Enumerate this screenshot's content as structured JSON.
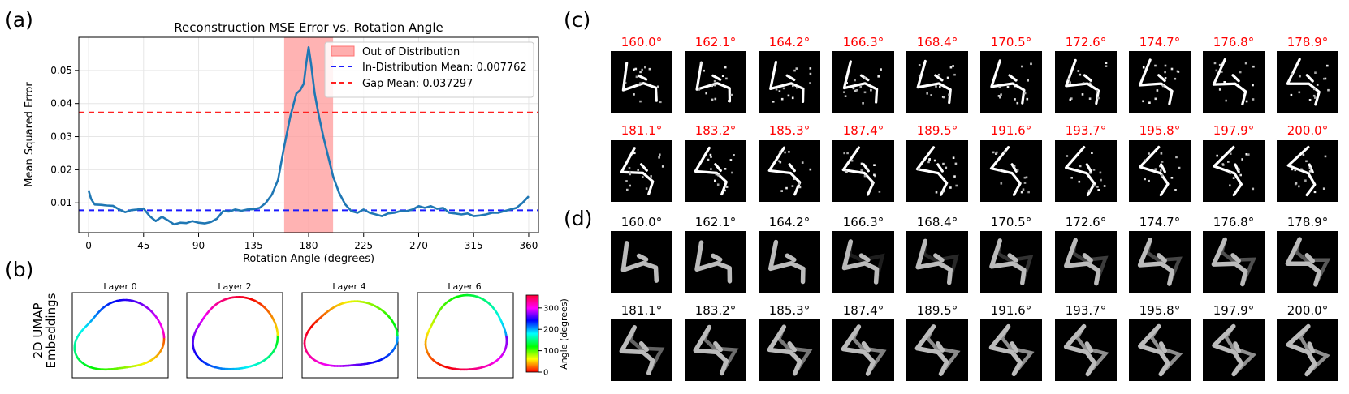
{
  "panel_labels": {
    "a": "(a)",
    "b": "(b)",
    "c": "(c)",
    "d": "(d)"
  },
  "colors": {
    "curve": "#1f77b4",
    "ood_band": "#ff9a9a",
    "in_dist": "#1a1aff",
    "gap": "#ff2020",
    "red_angle": "#ff0000"
  },
  "chart_data": [
    {
      "type": "line",
      "title": "Reconstruction MSE Error vs. Rotation Angle",
      "xlabel": "Rotation Angle (degrees)",
      "ylabel": "Mean Squared Error",
      "xlim": [
        -8,
        368
      ],
      "ylim": [
        0.001,
        0.06
      ],
      "xticks": [
        0,
        45,
        90,
        135,
        180,
        225,
        270,
        315,
        360
      ],
      "yticks": [
        0.01,
        0.02,
        0.03,
        0.04,
        0.05
      ],
      "ytick_labels": [
        "0.01",
        "0.02",
        "0.03",
        "0.04",
        "0.05"
      ],
      "grid": true,
      "legend_position": "top-right",
      "legend": [
        "Out of Distribution",
        "In-Distribution Mean: 0.007762",
        "Gap Mean: 0.037297"
      ],
      "ood_band": [
        160,
        200
      ],
      "hlines": {
        "in_distribution_mean": 0.007762,
        "gap_mean": 0.037297
      },
      "series": [
        {
          "x": [
            0,
            2,
            5,
            10,
            15,
            20,
            25,
            30,
            35,
            40,
            45,
            50,
            55,
            60,
            65,
            70,
            75,
            80,
            85,
            90,
            95,
            100,
            105,
            110,
            115,
            120,
            125,
            130,
            135,
            140,
            145,
            150,
            155,
            160,
            165,
            170,
            173,
            176,
            178,
            180,
            182,
            185,
            188,
            192,
            196,
            200,
            205,
            210,
            215,
            220,
            225,
            230,
            235,
            240,
            245,
            250,
            255,
            260,
            265,
            270,
            275,
            280,
            285,
            290,
            295,
            300,
            305,
            310,
            315,
            320,
            325,
            330,
            335,
            340,
            345,
            350,
            355,
            360
          ],
          "y": [
            0.0138,
            0.0112,
            0.0095,
            0.0094,
            0.0092,
            0.0091,
            0.008,
            0.0072,
            0.0078,
            0.008,
            0.0083,
            0.006,
            0.0045,
            0.0058,
            0.0047,
            0.0035,
            0.004,
            0.0039,
            0.0045,
            0.004,
            0.0038,
            0.0042,
            0.0052,
            0.0075,
            0.0074,
            0.008,
            0.0076,
            0.008,
            0.0081,
            0.0085,
            0.01,
            0.0125,
            0.017,
            0.027,
            0.036,
            0.043,
            0.044,
            0.046,
            0.052,
            0.057,
            0.052,
            0.043,
            0.037,
            0.03,
            0.024,
            0.018,
            0.013,
            0.0095,
            0.0075,
            0.007,
            0.008,
            0.007,
            0.0065,
            0.006,
            0.0068,
            0.007,
            0.0075,
            0.0075,
            0.008,
            0.009,
            0.0085,
            0.009,
            0.0082,
            0.0085,
            0.007,
            0.0068,
            0.0065,
            0.0068,
            0.006,
            0.0062,
            0.0065,
            0.007,
            0.007,
            0.0075,
            0.008,
            0.0085,
            0.01,
            0.012
          ]
        }
      ]
    }
  ],
  "umap": {
    "ylabel_line1": "2D UMAP",
    "ylabel_line2": "Embeddings",
    "layers": [
      "Layer 0",
      "Layer 2",
      "Layer 4",
      "Layer 6"
    ],
    "colorbar_label": "Angle (degrees)",
    "colorbar_ticks": [
      "0",
      "100",
      "200",
      "300"
    ],
    "colorbar_tick_values": [
      0,
      100,
      200,
      300
    ],
    "colorbar_range": [
      0,
      360
    ]
  },
  "angles": {
    "row1": [
      "160.0°",
      "162.1°",
      "164.2°",
      "166.3°",
      "168.4°",
      "170.5°",
      "172.6°",
      "174.7°",
      "176.8°",
      "178.9°"
    ],
    "row2": [
      "181.1°",
      "183.2°",
      "185.3°",
      "187.4°",
      "189.5°",
      "191.6°",
      "193.7°",
      "195.8°",
      "197.9°",
      "200.0°"
    ]
  }
}
